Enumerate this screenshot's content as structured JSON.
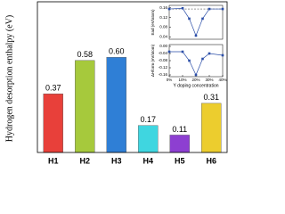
{
  "chart_data": [
    {
      "type": "bar",
      "y_label": "Hydrogen desorption enthalpy (eV)",
      "categories": [
        "H1",
        "H2",
        "H3",
        "H4",
        "H5",
        "H6"
      ],
      "values": [
        0.37,
        0.58,
        0.6,
        0.17,
        0.11,
        0.31
      ],
      "value_labels": [
        "0.37",
        "0.58",
        "0.60",
        "0.17",
        "0.11",
        "0.31"
      ],
      "colors": [
        "#e8403a",
        "#a6c93c",
        "#2f7fd6",
        "#3fd6e0",
        "#8d3fd1",
        "#eccd2e"
      ],
      "ylim": [
        0,
        0.95
      ]
    },
    {
      "type": "line",
      "y_label": "Ead (eV/atom)",
      "x": [
        0,
        10,
        15,
        20,
        25,
        30,
        40
      ],
      "values": [
        0.155,
        0.158,
        0.115,
        0.045,
        0.115,
        0.155,
        0.155
      ],
      "color": "#2b4ea8",
      "reference_line": 0.155,
      "xlim": [
        0,
        40
      ],
      "ylim": [
        0.03,
        0.17
      ],
      "yticks": [
        {
          "value": 0.16,
          "label": "0.16"
        },
        {
          "value": 0.12,
          "label": "0.12"
        },
        {
          "value": 0.08,
          "label": "0.08"
        },
        {
          "value": 0.04,
          "label": "0.04"
        }
      ]
    },
    {
      "type": "line",
      "y_label": "ΔHform (eV/atom)",
      "x_label": "Y doping concentration",
      "x": [
        0,
        10,
        15,
        20,
        25,
        30,
        40
      ],
      "values": [
        -0.03,
        -0.03,
        -0.08,
        -0.16,
        -0.07,
        -0.04,
        -0.05
      ],
      "color": "#2b4ea8",
      "xlim": [
        0,
        40
      ],
      "ylim": [
        -0.17,
        0.01
      ],
      "xticks": [
        {
          "value": 0,
          "label": "0%"
        },
        {
          "value": 10,
          "label": "10%"
        },
        {
          "value": 20,
          "label": "20%"
        },
        {
          "value": 30,
          "label": "30%"
        },
        {
          "value": 40,
          "label": "40%"
        }
      ],
      "yticks": [
        {
          "value": 0,
          "label": "0.00"
        },
        {
          "value": -0.04,
          "label": "-0.04"
        },
        {
          "value": -0.08,
          "label": "-0.08"
        },
        {
          "value": -0.12,
          "label": "-0.12"
        },
        {
          "value": -0.16,
          "label": "-0.16"
        }
      ]
    }
  ]
}
